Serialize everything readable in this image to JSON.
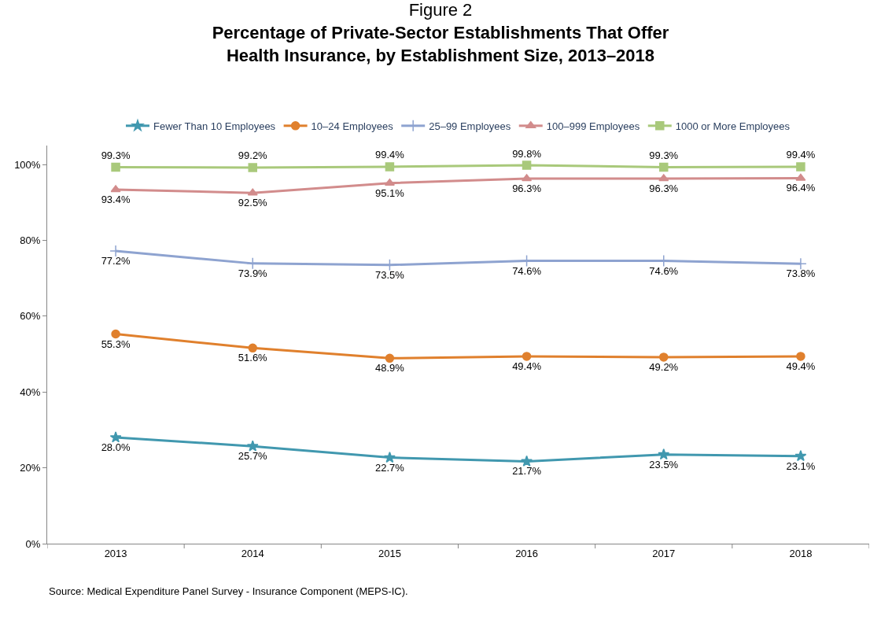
{
  "chart_data": {
    "type": "line",
    "title": "Figure 2",
    "subtitle": "Percentage of Private-Sector Establishments That Offer Health Insurance, by Establishment Size, 2013–2018",
    "categories": [
      "2013",
      "2014",
      "2015",
      "2016",
      "2017",
      "2018"
    ],
    "series": [
      {
        "name": "Fewer Than 10 Employees",
        "color": "#4198af",
        "marker": "star",
        "values": [
          28.0,
          25.7,
          22.7,
          21.7,
          23.5,
          23.1
        ],
        "value_labels": [
          "28.0%",
          "25.7%",
          "22.7%",
          "21.7%",
          "23.5%",
          "23.1%"
        ]
      },
      {
        "name": "10–24 Employees",
        "color": "#e0802d",
        "marker": "circle",
        "values": [
          55.3,
          51.6,
          48.9,
          49.4,
          49.2,
          49.4
        ],
        "value_labels": [
          "55.3%",
          "51.6%",
          "48.9%",
          "49.4%",
          "49.2%",
          "49.4%"
        ]
      },
      {
        "name": "25–99 Employees",
        "color": "#8ea3d0",
        "marker": "cross",
        "values": [
          77.2,
          73.9,
          73.5,
          74.6,
          74.6,
          73.8
        ],
        "value_labels": [
          "77.2%",
          "73.9%",
          "73.5%",
          "74.6%",
          "74.6%",
          "73.8%"
        ]
      },
      {
        "name": "100–999 Employees",
        "color": "#d28c8c",
        "marker": "triangle",
        "values": [
          93.4,
          92.5,
          95.1,
          96.3,
          96.3,
          96.4
        ],
        "value_labels": [
          "93.4%",
          "92.5%",
          "95.1%",
          "96.3%",
          "96.3%",
          "96.4%"
        ]
      },
      {
        "name": "1000 or More Employees",
        "color": "#a9c97b",
        "marker": "square",
        "values": [
          99.3,
          99.2,
          99.4,
          99.8,
          99.3,
          99.4
        ],
        "value_labels": [
          "99.3%",
          "99.2%",
          "99.4%",
          "99.8%",
          "99.3%",
          "99.4%"
        ]
      }
    ],
    "ylim": [
      0,
      105
    ],
    "yticks": [
      {
        "value": 0,
        "label": "0%"
      },
      {
        "value": 20,
        "label": "20%"
      },
      {
        "value": 40,
        "label": "40%"
      },
      {
        "value": 60,
        "label": "60%"
      },
      {
        "value": 80,
        "label": "80%"
      },
      {
        "value": 100,
        "label": "100%"
      }
    ],
    "grid": false,
    "legend": "top",
    "line_style": "solid",
    "annotations": [
      "Source: Medical Expenditure Panel Survey - Insurance Component (MEPS-IC)."
    ]
  }
}
